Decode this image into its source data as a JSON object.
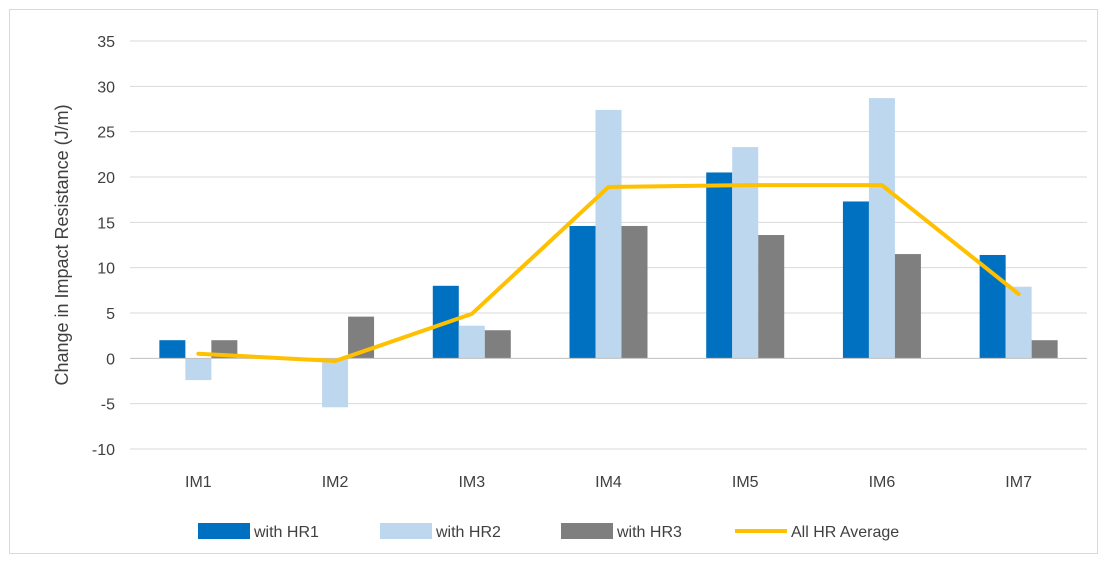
{
  "chart_data": {
    "type": "bar",
    "title": "",
    "xlabel": "",
    "ylabel": "Change in Impact Resistance (J/m)",
    "categories": [
      "IM1",
      "IM2",
      "IM3",
      "IM4",
      "IM5",
      "IM6",
      "IM7"
    ],
    "ylim": [
      -10,
      35
    ],
    "yticks": [
      -10,
      -5,
      0,
      5,
      10,
      15,
      20,
      25,
      30,
      35
    ],
    "grid": true,
    "legend_position": "bottom",
    "series": [
      {
        "name": "with HR1",
        "type": "bar",
        "color": "#0070c0",
        "values": [
          2.0,
          0,
          8.0,
          14.6,
          20.5,
          17.3,
          11.4
        ]
      },
      {
        "name": "with HR2",
        "type": "bar",
        "color": "#bdd7ee",
        "values": [
          -2.4,
          -5.4,
          3.6,
          27.4,
          23.3,
          28.7,
          7.9
        ]
      },
      {
        "name": "with HR3",
        "type": "bar",
        "color": "#7f7f7f",
        "values": [
          2.0,
          4.6,
          3.1,
          14.6,
          13.6,
          11.5,
          2.0
        ]
      },
      {
        "name": "All HR Average",
        "type": "line",
        "color": "#ffc000",
        "values": [
          0.5,
          -0.3,
          4.9,
          18.9,
          19.1,
          19.1,
          7.1
        ]
      }
    ]
  }
}
